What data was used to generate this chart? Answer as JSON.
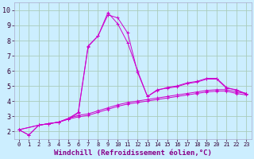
{
  "background_color": "#cceeff",
  "grid_color": "#aaccbb",
  "line_color": "#cc00cc",
  "marker_color": "#cc00cc",
  "xlabel": "Windchill (Refroidissement éolien,°C)",
  "xlim": [
    -0.5,
    23.5
  ],
  "ylim": [
    1.5,
    10.5
  ],
  "yticks": [
    2,
    3,
    4,
    5,
    6,
    7,
    8,
    9,
    10
  ],
  "xticks": [
    0,
    1,
    2,
    3,
    4,
    5,
    6,
    7,
    8,
    9,
    10,
    11,
    12,
    13,
    14,
    15,
    16,
    17,
    18,
    19,
    20,
    21,
    22,
    23
  ],
  "series": [
    {
      "x": [
        0,
        1,
        2,
        3,
        4,
        5,
        6,
        7,
        8,
        9,
        10,
        11,
        12,
        13,
        14,
        15,
        16,
        17,
        18,
        19,
        20,
        21,
        22,
        23
      ],
      "y": [
        2.1,
        1.75,
        2.4,
        2.5,
        2.6,
        2.8,
        3.2,
        7.6,
        8.3,
        9.7,
        9.5,
        8.5,
        5.9,
        4.3,
        4.7,
        4.9,
        5.0,
        5.2,
        5.3,
        5.5,
        5.5,
        4.9,
        4.7,
        4.5
      ]
    },
    {
      "x": [
        0,
        1,
        2,
        3,
        4,
        5,
        6,
        7,
        8,
        9,
        10,
        11,
        12,
        13,
        14,
        15,
        16,
        17,
        18,
        19,
        20,
        21,
        22,
        23
      ],
      "y": [
        2.1,
        1.75,
        2.4,
        2.5,
        2.6,
        2.85,
        3.25,
        7.65,
        8.3,
        9.85,
        9.1,
        7.85,
        6.0,
        4.3,
        4.75,
        4.85,
        4.95,
        5.15,
        5.25,
        5.45,
        5.45,
        4.85,
        4.75,
        4.45
      ]
    },
    {
      "x": [
        0,
        2,
        3,
        4,
        5,
        6,
        7,
        8,
        9,
        10,
        11,
        12,
        13,
        14,
        15,
        16,
        17,
        18,
        19,
        20,
        21,
        22,
        23
      ],
      "y": [
        2.1,
        2.4,
        2.5,
        2.6,
        2.85,
        3.05,
        3.15,
        3.35,
        3.55,
        3.75,
        3.9,
        4.0,
        4.1,
        4.2,
        4.3,
        4.4,
        4.5,
        4.6,
        4.7,
        4.75,
        4.75,
        4.6,
        4.5
      ]
    },
    {
      "x": [
        0,
        2,
        3,
        4,
        5,
        6,
        7,
        8,
        9,
        10,
        11,
        12,
        13,
        14,
        15,
        16,
        17,
        18,
        19,
        20,
        21,
        22,
        23
      ],
      "y": [
        2.1,
        2.4,
        2.5,
        2.6,
        2.8,
        2.95,
        3.05,
        3.25,
        3.45,
        3.65,
        3.8,
        3.9,
        4.0,
        4.1,
        4.2,
        4.3,
        4.4,
        4.5,
        4.6,
        4.65,
        4.65,
        4.5,
        4.4
      ]
    }
  ],
  "xlabel_fontsize": 6.5,
  "xtick_fontsize": 5.0,
  "ytick_fontsize": 6.0
}
